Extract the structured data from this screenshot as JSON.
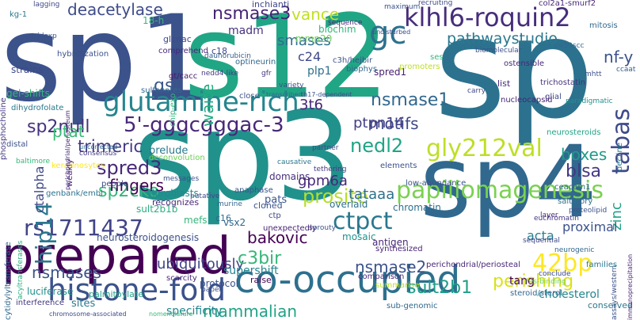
{
  "words": [
    {
      "text": "sp1",
      "color": "#3b528b"
    },
    {
      "text": "s12",
      "color": "#21a685"
    },
    {
      "text": "sp",
      "color": "#2c728e"
    },
    {
      "text": "sp3",
      "color": "#21918c"
    },
    {
      "text": "sp4",
      "color": "#31688e"
    },
    {
      "text": "prepared",
      "color": "#440154"
    },
    {
      "text": "co-occupied",
      "color": "#2d708e"
    },
    {
      "text": "histone-fold",
      "color": "#3b528b"
    },
    {
      "text": "klhl6-roquin2",
      "color": "#472d7b"
    },
    {
      "text": "glutamine-rich",
      "color": "#25858e"
    },
    {
      "text": "gly212val",
      "color": "#bddf26"
    },
    {
      "text": "papillomagenesis",
      "color": "#7ad151"
    },
    {
      "text": "5'-gggcgggac-3",
      "color": "#482878"
    },
    {
      "text": "ctpct",
      "color": "#2a788e"
    },
    {
      "text": "42bp",
      "color": "#fde725"
    },
    {
      "text": "rs1711437",
      "color": "#414487"
    },
    {
      "text": "gc",
      "color": "#2c728e"
    },
    {
      "text": "hip14",
      "color": "#2a788e"
    },
    {
      "text": "sp2null",
      "color": "#46327e"
    },
    {
      "text": "spred3",
      "color": "#482878"
    },
    {
      "text": "sp2cko",
      "color": "#35b779"
    },
    {
      "text": "trimeric",
      "color": "#443983"
    },
    {
      "text": "nsmase1",
      "color": "#31688e"
    },
    {
      "text": "nsmase3",
      "color": "#482475"
    },
    {
      "text": "deacetylase",
      "color": "#3e4c8a"
    },
    {
      "text": "pathwaystudio",
      "color": "#2a788e"
    },
    {
      "text": "nedl2",
      "color": "#20a486"
    },
    {
      "text": "prosite",
      "color": "#b5de2b"
    },
    {
      "text": "perishing",
      "color": "#d8e219"
    },
    {
      "text": "sult2b1",
      "color": "#1f9e89"
    },
    {
      "text": "tabas",
      "color": "#3e4a89"
    },
    {
      "text": "nf-y",
      "color": "#3b528b"
    },
    {
      "text": "blsa",
      "color": "#443983"
    },
    {
      "text": "waite",
      "color": "#25ab82"
    },
    {
      "text": "gsl",
      "color": "#39568c"
    },
    {
      "text": "vance",
      "color": "#c2df23"
    },
    {
      "text": "smases",
      "color": "#2e6e8e"
    },
    {
      "text": "ctalpha",
      "color": "#3f4889"
    },
    {
      "text": "fingers",
      "color": "#440154"
    },
    {
      "text": "ptat",
      "color": "#3aba76"
    },
    {
      "text": "motifs",
      "color": "#3e4989"
    },
    {
      "text": "ptpn14",
      "color": "#433e85"
    },
    {
      "text": "3t6",
      "color": "#482677"
    },
    {
      "text": "boxes",
      "color": "#1f9a8a"
    },
    {
      "text": "nsmases",
      "color": "#3b528b"
    },
    {
      "text": "ubiquitously",
      "color": "#414487"
    },
    {
      "text": "mammalian",
      "color": "#20a386"
    },
    {
      "text": "nsmase2",
      "color": "#3b528b"
    },
    {
      "text": "bakovic",
      "color": "#440154"
    },
    {
      "text": "c3bir",
      "color": "#35b779"
    },
    {
      "text": "tataaa",
      "color": "#2d708e"
    },
    {
      "text": "gpm6a",
      "color": "#482878"
    },
    {
      "text": "zinc",
      "color": "#20a486"
    },
    {
      "text": "acta",
      "color": "#26818e"
    },
    {
      "text": "proximal",
      "color": "#3b528b"
    },
    {
      "text": "cholesterol",
      "color": "#25858e"
    },
    {
      "text": "specificity",
      "color": "#25858e"
    },
    {
      "text": "supershift",
      "color": "#25848e"
    },
    {
      "text": "tang",
      "color": "#440154"
    },
    {
      "text": "c24",
      "color": "#3e4989"
    },
    {
      "text": "plp1",
      "color": "#2d708e"
    },
    {
      "text": "spred1",
      "color": "#482173"
    },
    {
      "text": "madm",
      "color": "#46337e"
    },
    {
      "text": "inchianti",
      "color": "#3f4788"
    },
    {
      "text": "biochim",
      "color": "#32b67a"
    },
    {
      "text": "mmp20",
      "color": "#6ece58"
    },
    {
      "text": "gt/cacc",
      "color": "#481a6c"
    },
    {
      "text": "optineurin",
      "color": "#31688e"
    },
    {
      "text": "c18",
      "color": "#3e4989"
    },
    {
      "text": "daunorubicin",
      "color": "#355f8d"
    },
    {
      "text": "nedd4-like",
      "color": "#443983"
    },
    {
      "text": "gfr",
      "color": "#46327e"
    },
    {
      "text": "prelude",
      "color": "#29798e"
    },
    {
      "text": "deconvolution",
      "color": "#6ece58"
    },
    {
      "text": "fibroblasts",
      "color": "#23898e"
    },
    {
      "text": "recognizes",
      "color": "#482878"
    },
    {
      "text": "mefs",
      "color": "#35b779"
    },
    {
      "text": "c16",
      "color": "#31688e"
    },
    {
      "text": "sult2b1b",
      "color": "#29af7f"
    },
    {
      "text": "pats",
      "color": "#39558c"
    },
    {
      "text": "cloned",
      "color": "#3b528b"
    },
    {
      "text": "ctp",
      "color": "#3e4989"
    },
    {
      "text": "overlaid",
      "color": "#2e6f8e"
    },
    {
      "text": "domains",
      "color": "#472f7d"
    },
    {
      "text": "keratinosytes",
      "color": "#fde725"
    },
    {
      "text": "people",
      "color": "#3e4a89"
    },
    {
      "text": "genbank/embl",
      "color": "#2c728e"
    },
    {
      "text": "neurosteroidogenesis",
      "color": "#3b528b"
    },
    {
      "text": "chromatin",
      "color": "#2d708e"
    },
    {
      "text": "antigen",
      "color": "#482878"
    },
    {
      "text": "mosaic",
      "color": "#21918c"
    },
    {
      "text": "synthesized",
      "color": "#482475"
    },
    {
      "text": "raise",
      "color": "#440154"
    },
    {
      "text": "palmitoylate",
      "color": "#20a386"
    },
    {
      "text": "sites",
      "color": "#2a788e"
    },
    {
      "text": "luciferase",
      "color": "#21918c"
    },
    {
      "text": "comparison",
      "color": "#482878"
    },
    {
      "text": "summarise",
      "color": "#bddf26"
    },
    {
      "text": "sub-genomic",
      "color": "#31688e"
    },
    {
      "text": "conserved",
      "color": "#2a788e"
    },
    {
      "text": "mitosis",
      "color": "#31688e"
    },
    {
      "text": "ccaat",
      "color": "#355f8d"
    },
    {
      "text": "trichostatin",
      "color": "#46327e"
    },
    {
      "text": "glial",
      "color": "#3e4989"
    },
    {
      "text": "mhtt",
      "color": "#3b528b"
    },
    {
      "text": "nucleocapsid",
      "color": "#482475"
    },
    {
      "text": "neurosteroids",
      "color": "#20a386"
    },
    {
      "text": "paradigmatic",
      "color": "#21918c"
    },
    {
      "text": "decline",
      "color": "#2a788e"
    },
    {
      "text": "ceacam1",
      "color": "#31688e"
    },
    {
      "text": "saltatory",
      "color": "#2c728e"
    },
    {
      "text": "proteolipid",
      "color": "#3b528b"
    },
    {
      "text": "euchromatin",
      "color": "#443983"
    },
    {
      "text": "layer",
      "color": "#482878"
    },
    {
      "text": "sequential",
      "color": "#3e4989"
    },
    {
      "text": "neurogenic",
      "color": "#31688e"
    },
    {
      "text": "families",
      "color": "#2a788e"
    },
    {
      "text": "assays/western",
      "color": "#3b528b"
    },
    {
      "text": "immunoprecipitation",
      "color": "#482475"
    },
    {
      "text": "conclude",
      "color": "#3e4989"
    },
    {
      "text": "steroid/sterol",
      "color": "#31688e"
    },
    {
      "text": "hts-binding",
      "color": "#7ad151"
    },
    {
      "text": "phosphocholine",
      "color": "#443983"
    },
    {
      "text": "cytidylyltransferase",
      "color": "#31688e"
    },
    {
      "text": "acyltransferases",
      "color": "#29af7f"
    },
    {
      "text": "gel-shifts",
      "color": "#35b779"
    },
    {
      "text": "dihydrofolate",
      "color": "#2a788e"
    },
    {
      "text": "strains",
      "color": "#3e4989"
    },
    {
      "text": "hybridization",
      "color": "#3b528b"
    },
    {
      "text": "perichondrial/periosteum",
      "color": "#482878"
    },
    {
      "text": "chip-exo",
      "color": "#35b779"
    },
    {
      "text": "sulfonates",
      "color": "#31688e"
    },
    {
      "text": "glcnac",
      "color": "#3e4989"
    },
    {
      "text": "comprehend",
      "color": "#482878"
    },
    {
      "text": "18-h",
      "color": "#35b779"
    },
    {
      "text": "kg-1",
      "color": "#2a788e"
    },
    {
      "text": "lagging",
      "color": "#3e4989"
    },
    {
      "text": "tri-loxp",
      "color": "#3b528b"
    },
    {
      "text": "weakly",
      "color": "#482878"
    },
    {
      "text": "distal",
      "color": "#3b528b"
    },
    {
      "text": "uncorrected",
      "color": "#31688e"
    },
    {
      "text": "baltimore",
      "color": "#35b779"
    },
    {
      "text": "consensus",
      "color": "#443983"
    },
    {
      "text": "interference",
      "color": "#443983"
    },
    {
      "text": "chromosome-associated",
      "color": "#3e4989"
    },
    {
      "text": "nomenclature",
      "color": "#35b779"
    },
    {
      "text": "protocol",
      "color": "#3b528b"
    },
    {
      "text": "scarcity",
      "color": "#482878"
    },
    {
      "text": "paper",
      "color": "#3b528b"
    },
    {
      "text": "vsx2",
      "color": "#31688e"
    },
    {
      "text": "unexpectedly",
      "color": "#482475"
    },
    {
      "text": "anaphase",
      "color": "#3b528b"
    },
    {
      "text": "causative",
      "color": "#2a788e"
    },
    {
      "text": "partner",
      "color": "#3e4989"
    },
    {
      "text": "tethering",
      "color": "#443983"
    },
    {
      "text": "elements",
      "color": "#3b528b"
    },
    {
      "text": "low-abundance",
      "color": "#3b528b"
    },
    {
      "text": "perichondrial/periosteal",
      "color": "#482878"
    },
    {
      "text": "close",
      "color": "#3b528b"
    },
    {
      "text": "transcribed",
      "color": "#31688e"
    },
    {
      "text": "th17-dependent",
      "color": "#3b528b"
    },
    {
      "text": "carry",
      "color": "#3e4989"
    },
    {
      "text": "list",
      "color": "#482878"
    },
    {
      "text": "variety",
      "color": "#3b528b"
    },
    {
      "text": "biophys",
      "color": "#31688e"
    },
    {
      "text": "ses",
      "color": "#35b779"
    },
    {
      "text": "c3h/hejbir",
      "color": "#3b528b"
    },
    {
      "text": "sequence",
      "color": "#482878"
    },
    {
      "text": "undisturbed",
      "color": "#3e4989"
    },
    {
      "text": "maximum",
      "color": "#3b528b"
    },
    {
      "text": "col2a1-smurf2",
      "color": "#482878"
    },
    {
      "text": "biomolecular",
      "color": "#3b528b"
    },
    {
      "text": "p450scc",
      "color": "#31688e"
    },
    {
      "text": "ostensible",
      "color": "#482878"
    },
    {
      "text": "promoters",
      "color": "#bddf26"
    },
    {
      "text": "recruiting",
      "color": "#3e4989"
    },
    {
      "text": "messages",
      "color": "#3b528b"
    },
    {
      "text": "putative",
      "color": "#3e4989"
    },
    {
      "text": "murine",
      "color": "#31688e"
    },
    {
      "text": "sprouty",
      "color": "#3b528b"
    }
  ]
}
